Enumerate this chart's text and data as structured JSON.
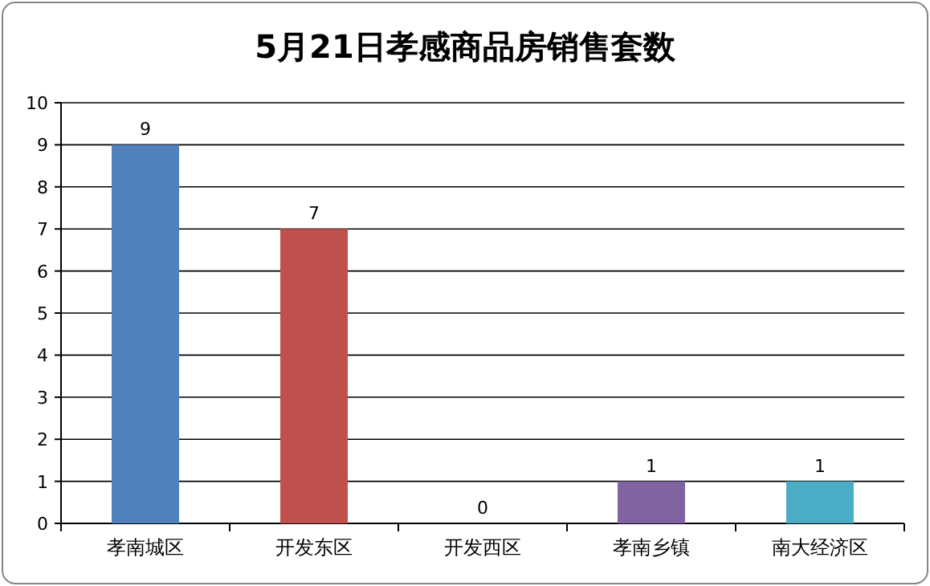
{
  "chart_data": {
    "type": "bar",
    "title": "5月21日孝感商品房销售套数",
    "categories": [
      "孝南城区",
      "开发东区",
      "开发西区",
      "孝南乡镇",
      "南大经济区"
    ],
    "values": [
      9,
      7,
      0,
      1,
      1
    ],
    "colors": [
      "#4f81bd",
      "#c0504d",
      "#9bbb59",
      "#8064a2",
      "#4bacc6"
    ],
    "ylim": [
      0,
      10
    ],
    "yticks": [
      0,
      1,
      2,
      3,
      4,
      5,
      6,
      7,
      8,
      9,
      10
    ],
    "grid": "y",
    "data_labels": true
  }
}
